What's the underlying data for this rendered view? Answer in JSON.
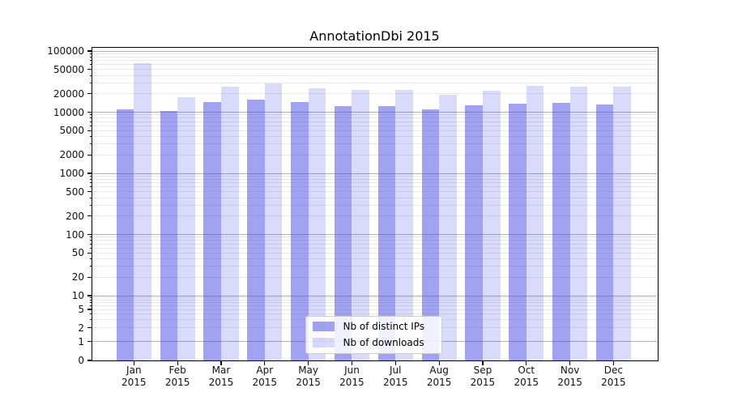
{
  "title": "AnnotationDbi 2015",
  "chart_data": {
    "type": "bar",
    "title": "AnnotationDbi 2015",
    "yscale": "symlog",
    "ylim": [
      0,
      100000
    ],
    "grid": true,
    "legend_position": "lower-center",
    "categories": [
      "Jan 2015",
      "Feb 2015",
      "Mar 2015",
      "Apr 2015",
      "May 2015",
      "Jun 2015",
      "Jul 2015",
      "Aug 2015",
      "Sep 2015",
      "Oct 2015",
      "Nov 2015",
      "Dec 2015"
    ],
    "x_ticks": [
      {
        "label": "Jan",
        "sublabel": "2015"
      },
      {
        "label": "Feb",
        "sublabel": "2015"
      },
      {
        "label": "Mar",
        "sublabel": "2015"
      },
      {
        "label": "Apr",
        "sublabel": "2015"
      },
      {
        "label": "May",
        "sublabel": "2015"
      },
      {
        "label": "Jun",
        "sublabel": "2015"
      },
      {
        "label": "Jul",
        "sublabel": "2015"
      },
      {
        "label": "Aug",
        "sublabel": "2015"
      },
      {
        "label": "Sep",
        "sublabel": "2015"
      },
      {
        "label": "Oct",
        "sublabel": "2015"
      },
      {
        "label": "Nov",
        "sublabel": "2015"
      },
      {
        "label": "Dec",
        "sublabel": "2015"
      }
    ],
    "y_ticks": [
      {
        "value": 100000,
        "label": "100000"
      },
      {
        "value": 50000,
        "label": "50000"
      },
      {
        "value": 20000,
        "label": "20000"
      },
      {
        "value": 10000,
        "label": "10000"
      },
      {
        "value": 5000,
        "label": "5000"
      },
      {
        "value": 2000,
        "label": "2000"
      },
      {
        "value": 1000,
        "label": "1000"
      },
      {
        "value": 500,
        "label": "500"
      },
      {
        "value": 200,
        "label": "200"
      },
      {
        "value": 100,
        "label": "100"
      },
      {
        "value": 50,
        "label": "50"
      },
      {
        "value": 20,
        "label": "20"
      },
      {
        "value": 10,
        "label": "10"
      },
      {
        "value": 5,
        "label": "5"
      },
      {
        "value": 2,
        "label": "2"
      },
      {
        "value": 1,
        "label": "1"
      },
      {
        "value": 0,
        "label": "0"
      }
    ],
    "series": [
      {
        "name": "Nb of distinct IPs",
        "color": "rgba(70,70,230,0.5)",
        "solid_color": "#a3a3f0",
        "values": [
          11200,
          10600,
          14500,
          16100,
          14800,
          12700,
          12700,
          11000,
          12800,
          13800,
          14000,
          13500
        ]
      },
      {
        "name": "Nb of downloads",
        "color": "rgba(70,70,230,0.2)",
        "solid_color": "#d9d9f8",
        "values": [
          64000,
          17500,
          26500,
          29900,
          24700,
          22900,
          22900,
          19300,
          22500,
          26600,
          26000,
          26200
        ]
      }
    ]
  },
  "colors": {
    "major_grid": "#b0b0b0",
    "minor_grid": "#e8e8e8",
    "axis": "#000000",
    "background": "#ffffff"
  }
}
